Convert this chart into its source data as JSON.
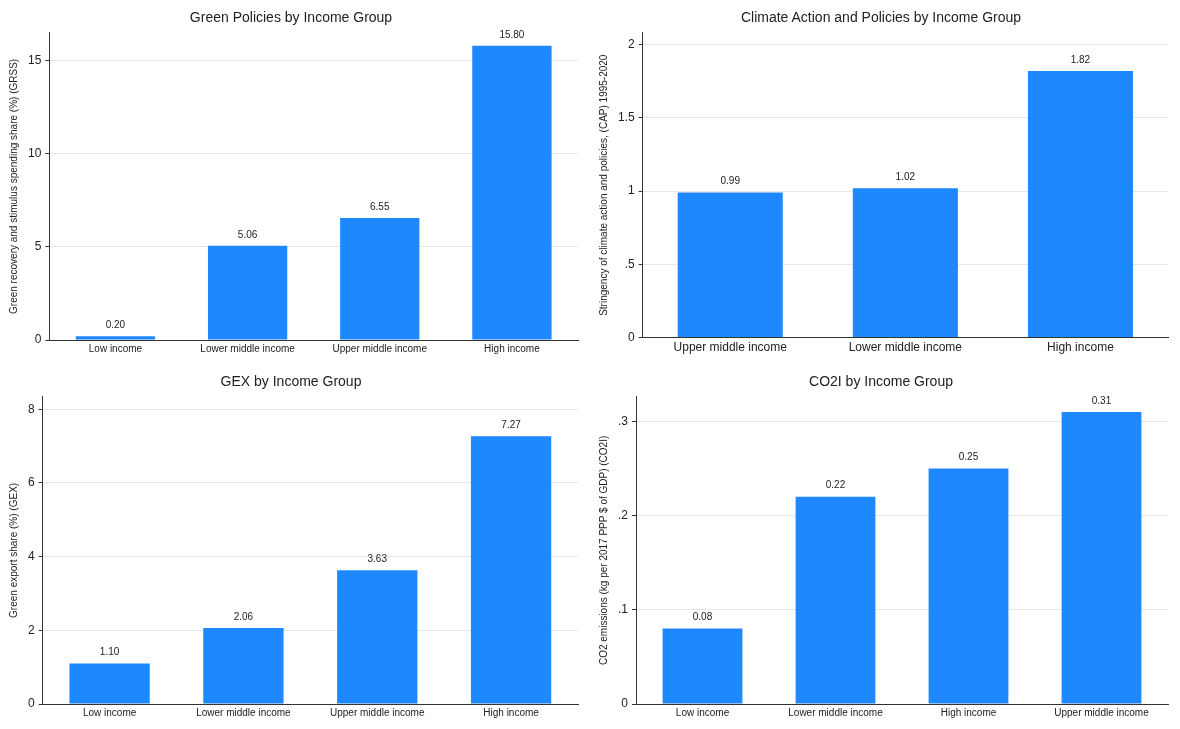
{
  "chart_data": [
    {
      "type": "bar",
      "title": "Green Policies by Income Group",
      "ylabel": "Green recovery and stimulus spending share (%) (GRSS)",
      "categories": [
        "Low income",
        "Lower middle income",
        "Upper middle income",
        "High income"
      ],
      "values": [
        0.2,
        5.06,
        6.55,
        15.8
      ],
      "value_labels": [
        "0.20",
        "5.06",
        "6.55",
        "15.80"
      ],
      "color": "#1e88ff",
      "ylim": [
        0,
        16.5
      ],
      "yticks": [
        0,
        5,
        10,
        15
      ],
      "grid": "y"
    },
    {
      "type": "bar",
      "title": "Climate Action and Policies by Income Group",
      "ylabel": "Stringency of climate action and policies, (CAP) 1995-2020",
      "categories": [
        "Upper middle income",
        "Lower middle income",
        "High income"
      ],
      "values": [
        0.99,
        1.02,
        1.82
      ],
      "value_labels": [
        "0.99",
        "1.02",
        "1.82"
      ],
      "color": "#1e88ff",
      "ylim": [
        0,
        2.08
      ],
      "yticks": [
        0,
        {
          "value": 0.5,
          "label": ".5"
        },
        1,
        1.5,
        2
      ],
      "grid": "y"
    },
    {
      "type": "bar",
      "title": "GEX by Income Group",
      "ylabel": "Green export share (%) (GEX)",
      "categories": [
        "Low income",
        "Lower middle income",
        "Upper middle income",
        "High income"
      ],
      "values": [
        1.1,
        2.06,
        3.63,
        7.27
      ],
      "value_labels": [
        "1.10",
        "2.06",
        "3.63",
        "7.27"
      ],
      "color": "#1e88ff",
      "ylim": [
        0,
        8.34
      ],
      "yticks": [
        0,
        2,
        4,
        6,
        8
      ],
      "grid": "y"
    },
    {
      "type": "bar",
      "title": "CO2I by Income Group",
      "ylabel": "CO2 emissions (kg per 2017 PPP $ of GDP) (CO2I)",
      "categories": [
        "Low income",
        "Lower middle income",
        "High income",
        "Upper middle income"
      ],
      "values": [
        0.08,
        0.22,
        0.25,
        0.31
      ],
      "value_labels": [
        "0.08",
        "0.22",
        "0.25",
        "0.31"
      ],
      "color": "#1e88ff",
      "ylim": [
        0,
        0.326
      ],
      "yticks": [
        0,
        {
          "value": 0.1,
          "label": ".1"
        },
        {
          "value": 0.2,
          "label": ".2"
        },
        {
          "value": 0.3,
          "label": ".3"
        }
      ],
      "grid": "y"
    }
  ]
}
